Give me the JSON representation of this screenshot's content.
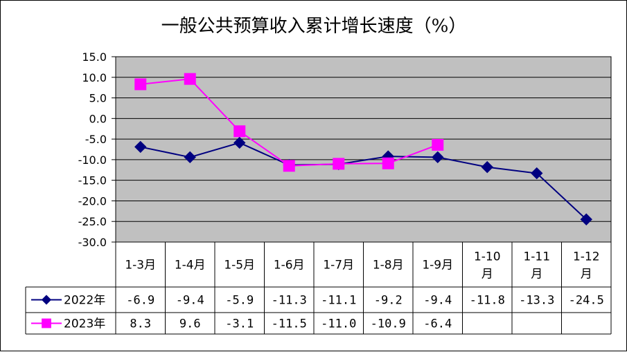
{
  "chart_data": {
    "type": "line",
    "title": "一般公共预算收入累计增长速度（%）",
    "y_ticks": [
      "15.0",
      "10.0",
      "5.0",
      "0.0",
      "-5.0",
      "-10.0",
      "-15.0",
      "-20.0",
      "-25.0",
      "-30.0"
    ],
    "ylim": [
      -30,
      15
    ],
    "grid": true,
    "categories": [
      [
        "1-3月"
      ],
      [
        "1-4月"
      ],
      [
        "1-5月"
      ],
      [
        "1-6月"
      ],
      [
        "1-7月"
      ],
      [
        "1-8月"
      ],
      [
        "1-9月"
      ],
      [
        "1-10",
        "月"
      ],
      [
        "1-11",
        "月"
      ],
      [
        "1-12",
        "月"
      ]
    ],
    "series": [
      {
        "name": "2022年",
        "color": "#000080",
        "marker": "diamond",
        "values": [
          -6.9,
          -9.4,
          -5.9,
          -11.3,
          -11.1,
          -9.2,
          -9.4,
          -11.8,
          -13.3,
          -24.5
        ],
        "labels": [
          "-6.9",
          "-9.4",
          "-5.9",
          "-11.3",
          "-11.1",
          "-9.2",
          "-9.4",
          "-11.8",
          "-13.3",
          "-24.5"
        ]
      },
      {
        "name": "2023年",
        "color": "#ff00ff",
        "marker": "square",
        "values": [
          8.3,
          9.6,
          -3.1,
          -11.5,
          -11.0,
          -10.9,
          -6.4,
          null,
          null,
          null
        ],
        "labels": [
          "8.3",
          "9.6",
          "-3.1",
          "-11.5",
          "-11.0",
          "-10.9",
          "-6.4",
          "",
          "",
          ""
        ]
      }
    ],
    "plot_background": "#c0c0c0"
  }
}
